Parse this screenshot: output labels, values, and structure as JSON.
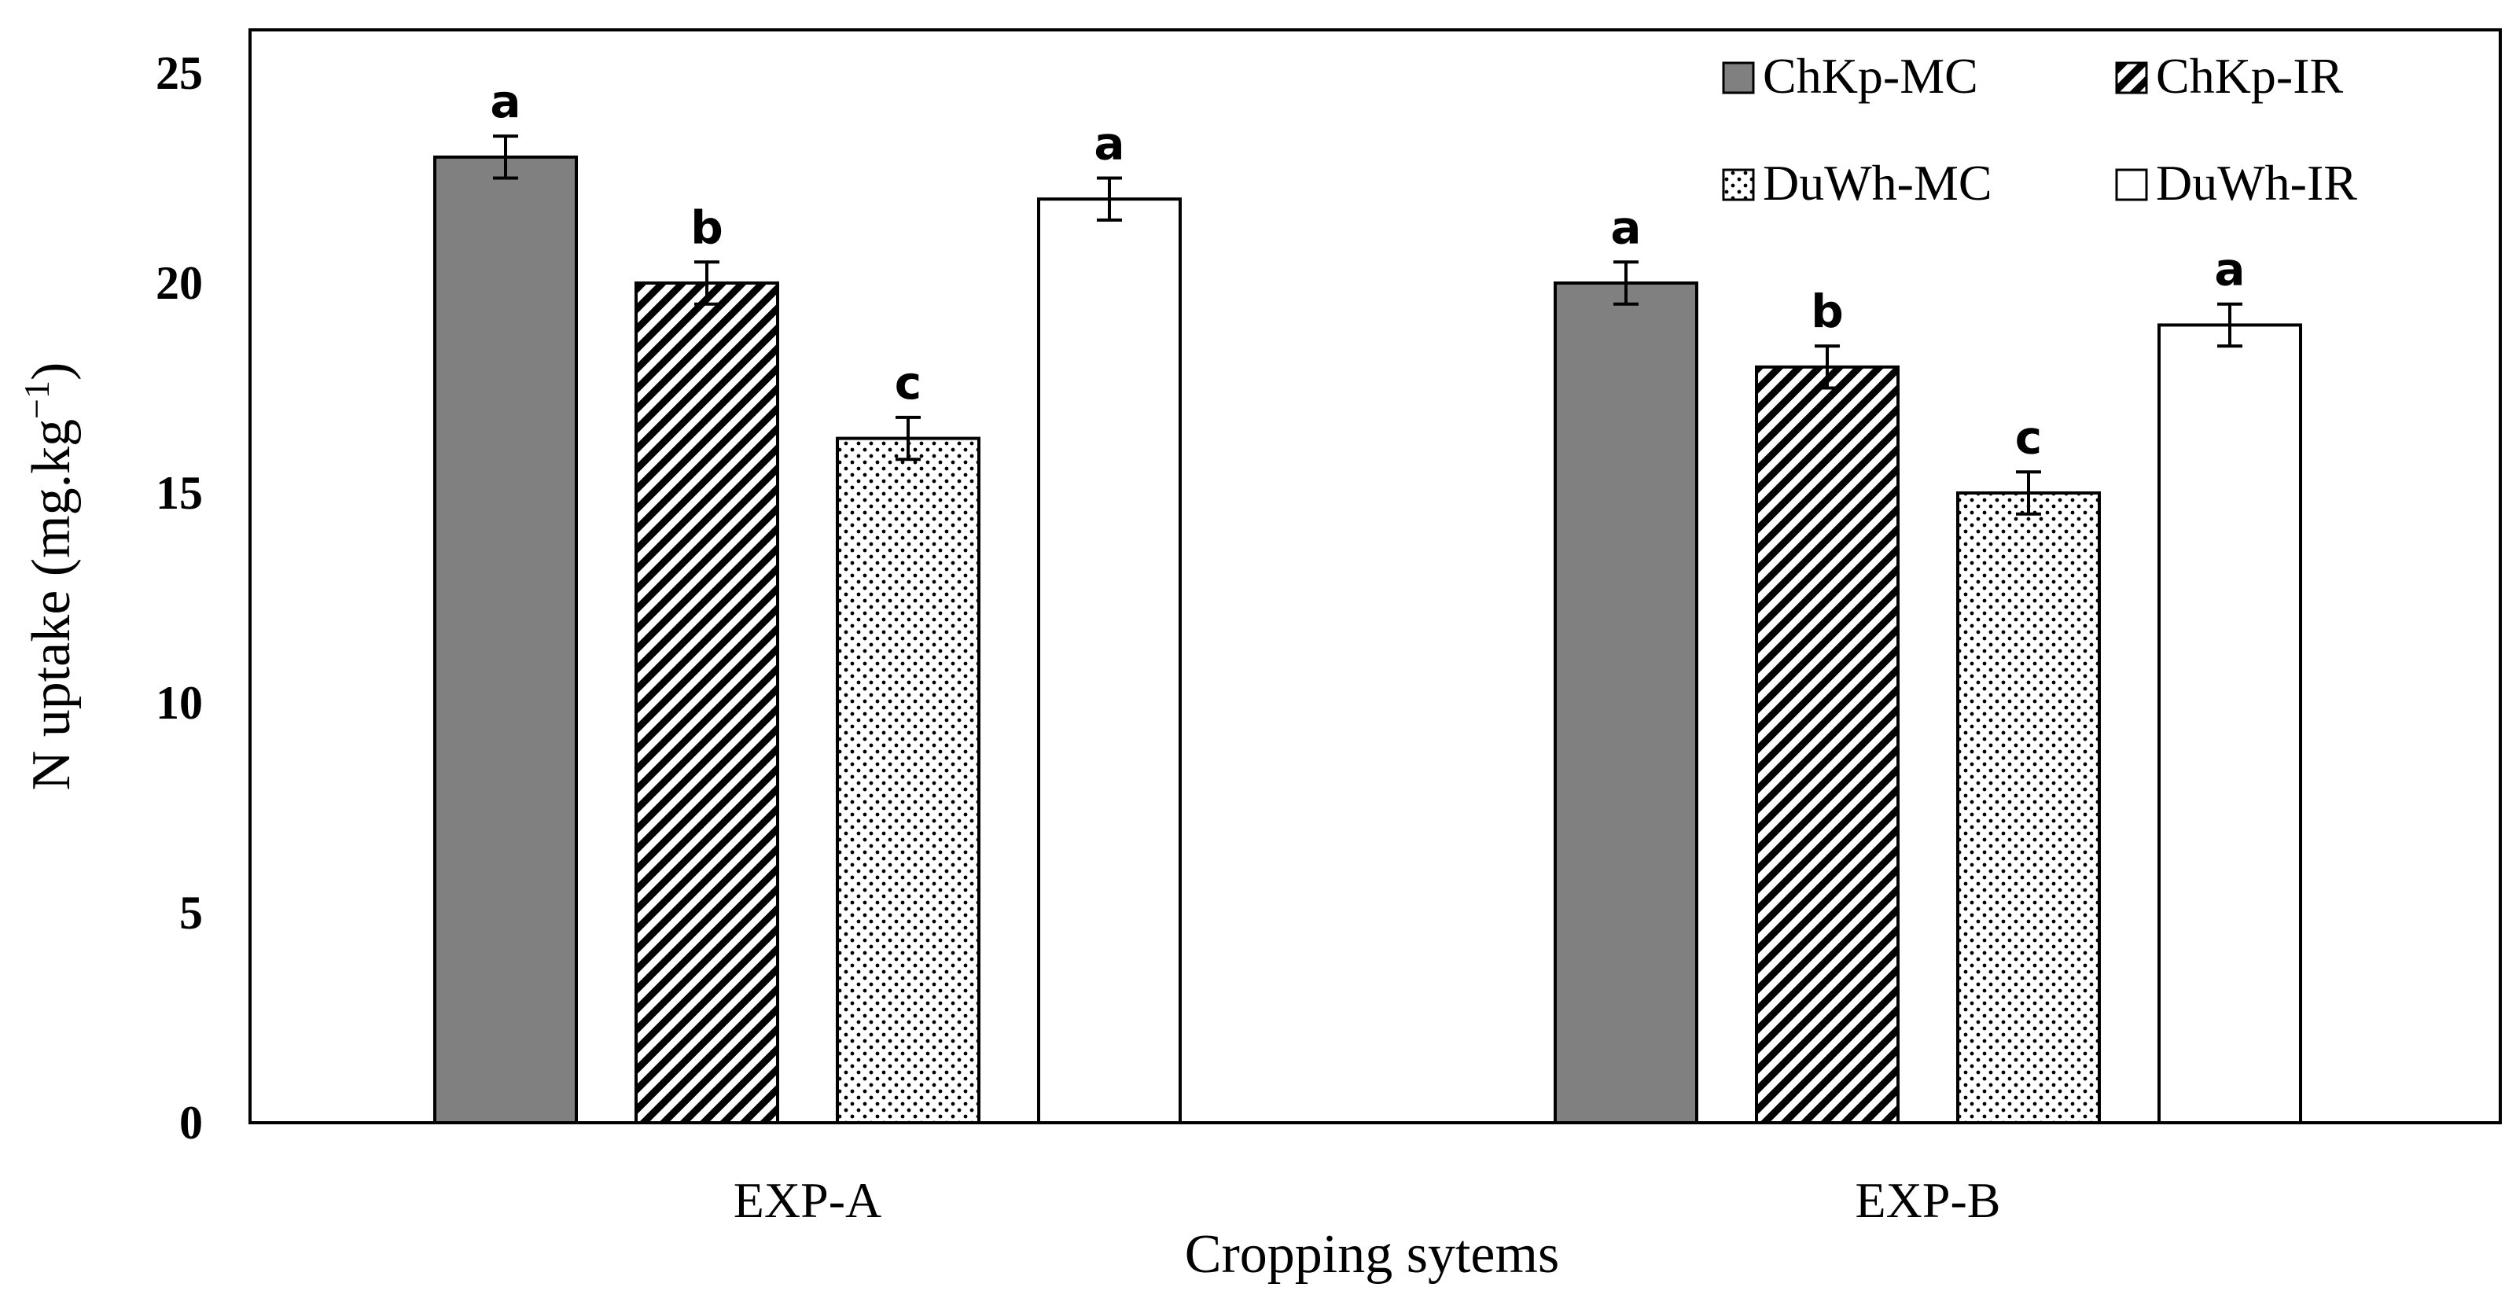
{
  "chart_data": {
    "type": "bar",
    "title": "",
    "xlabel": "Cropping sytems",
    "ylabel": "N uptake (mg.kg",
    "ylabel_sup": "−1",
    "ylabel_end": ")",
    "ylim": [
      0,
      25
    ],
    "yticks": [
      0,
      5,
      10,
      15,
      20,
      25
    ],
    "grid": false,
    "legend_position": "top-right",
    "categories": [
      "EXP-A",
      "EXP-B"
    ],
    "series": [
      {
        "name": "ChKp-MC",
        "values": [
          23,
          20
        ],
        "errors": [
          0.5,
          0.5
        ],
        "labels": [
          "a",
          "a"
        ],
        "fill": "#808080",
        "pattern": "solid"
      },
      {
        "name": "ChKp-IR",
        "values": [
          20,
          18
        ],
        "errors": [
          0.5,
          0.5
        ],
        "labels": [
          "b",
          "b"
        ],
        "fill": "#000000",
        "pattern": "diagonal"
      },
      {
        "name": "DuWh-MC",
        "values": [
          16.3,
          15
        ],
        "errors": [
          0.5,
          0.5
        ],
        "labels": [
          "c",
          "c"
        ],
        "fill": "#000000",
        "pattern": "dots"
      },
      {
        "name": "DuWh-IR",
        "values": [
          22,
          19
        ],
        "errors": [
          0.5,
          0.5
        ],
        "labels": [
          "a",
          "a"
        ],
        "fill": "#ffffff",
        "pattern": "none"
      }
    ]
  }
}
